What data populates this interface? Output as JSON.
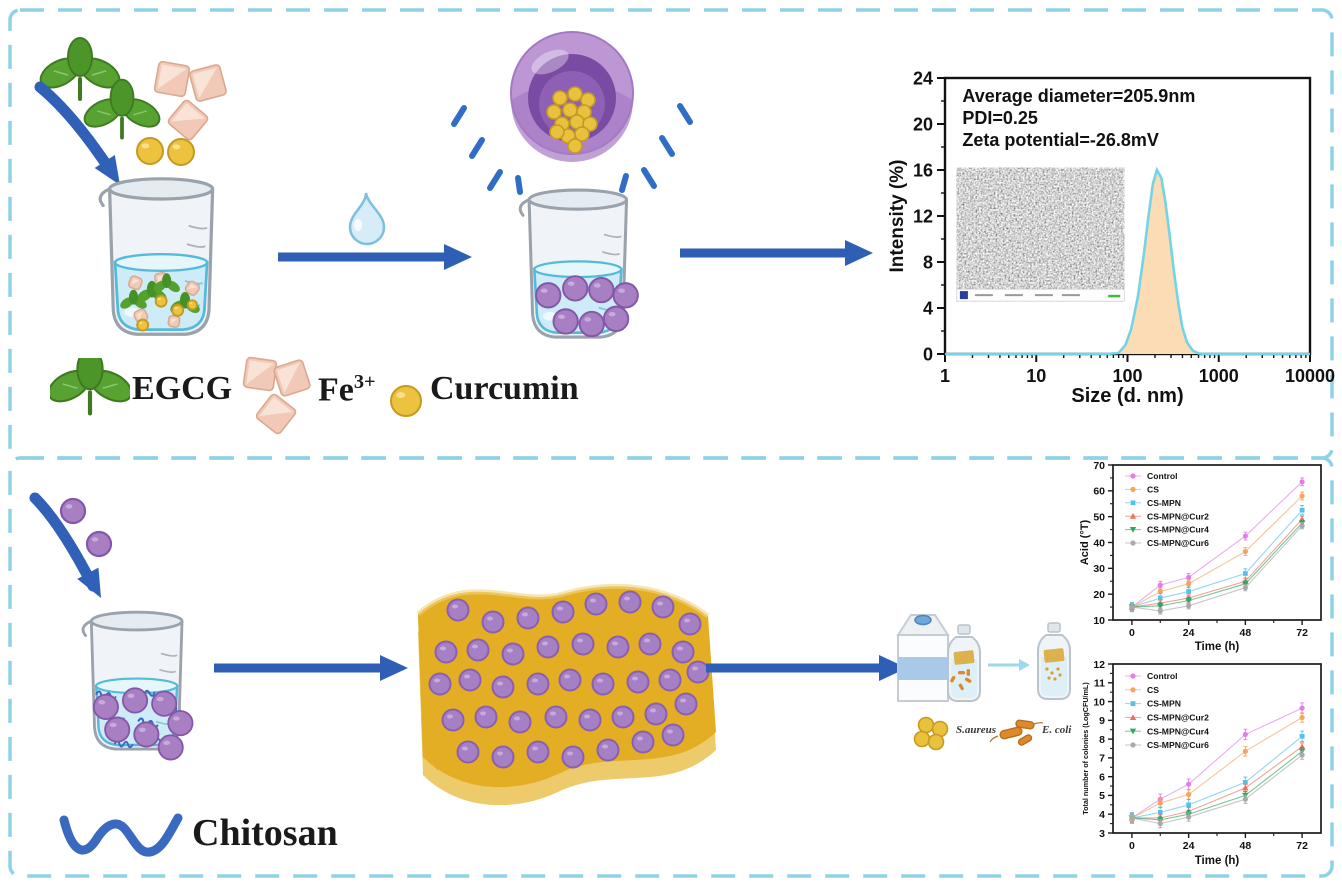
{
  "figure": {
    "top_panel": {
      "legend": {
        "egcg": "EGCG",
        "fe_base": "Fe",
        "fe_sup": "3+",
        "curcumin": "Curcumin"
      }
    },
    "bottom_panel": {
      "chitosan": "Chitosan",
      "bacteria": {
        "saureus": "S.aureus",
        "ecoli": "E. coli"
      }
    }
  },
  "accent_colors": {
    "panel_border": "#8fd2e6",
    "arrow_blue": "#2e5fb5",
    "nanoparticle_purple": "#a87fc2",
    "film_gold": "#e6b12e",
    "liquid_cyan": "#cdecf8"
  },
  "chart_data": [
    {
      "id": "dls",
      "type": "area",
      "title": "",
      "xlabel": "Size (d. nm)",
      "ylabel": "Intensity (%)",
      "x_scale": "log",
      "xlim": [
        1,
        10000
      ],
      "ylim": [
        0,
        24
      ],
      "xticks": [
        1,
        10,
        100,
        1000,
        10000
      ],
      "yticks": [
        0,
        4,
        8,
        12,
        16,
        20,
        24
      ],
      "annotations": [
        "Average diameter=205.9nm",
        "PDI=0.25",
        "Zeta potential=-26.8mV"
      ],
      "line_color": "#72d4e4",
      "fill_color": "#fbdcb4",
      "curve_x": [
        1,
        60,
        80,
        95,
        110,
        130,
        150,
        170,
        190,
        210,
        235,
        260,
        290,
        320,
        360,
        400,
        450,
        520,
        600,
        700,
        10000
      ],
      "curve_y": [
        0,
        0,
        0.1,
        0.8,
        2.2,
        5.0,
        8.5,
        12.0,
        14.8,
        16.0,
        15.3,
        13.2,
        10.3,
        7.4,
        4.4,
        2.3,
        1.0,
        0.3,
        0.05,
        0,
        0
      ]
    },
    {
      "id": "acid",
      "type": "line",
      "xlabel": "Time (h)",
      "ylabel": "Acid (°T)",
      "x": [
        0,
        12,
        24,
        48,
        72
      ],
      "xticks": [
        0,
        24,
        48,
        72
      ],
      "xminor": [
        12,
        36,
        60
      ],
      "xlim": [
        -8,
        80
      ],
      "ylim": [
        10,
        70
      ],
      "yticks": [
        10,
        20,
        30,
        40,
        50,
        60,
        70
      ],
      "legend_position": "top-left",
      "grid": false,
      "series": [
        {
          "name": "Control",
          "color": "#e27fe6",
          "marker": "circle",
          "err": 1.5,
          "values": [
            15,
            23.5,
            26.5,
            42.5,
            63.5
          ]
        },
        {
          "name": "CS",
          "color": "#f5a45c",
          "marker": "circle",
          "err": 1.5,
          "values": [
            15,
            21.0,
            24.0,
            36.5,
            58.0
          ]
        },
        {
          "name": "CS-MPN",
          "color": "#55c1e9",
          "marker": "square",
          "err": 1.8,
          "values": [
            15,
            18.5,
            21.0,
            28.0,
            52.5
          ]
        },
        {
          "name": "CS-MPN@Cur2",
          "color": "#f07060",
          "marker": "triangle-up",
          "err": 1.2,
          "values": [
            15,
            16.5,
            18.5,
            25.0,
            49.0
          ]
        },
        {
          "name": "CS-MPN@Cur4",
          "color": "#2da868",
          "marker": "triangle-down",
          "err": 1.2,
          "values": [
            15,
            15.5,
            17.5,
            24.0,
            47.5
          ]
        },
        {
          "name": "CS-MPN@Cur6",
          "color": "#a9a9a9",
          "marker": "circle",
          "err": 1.2,
          "values": [
            15,
            13.5,
            15.5,
            22.5,
            46.5
          ]
        }
      ]
    },
    {
      "id": "colonies",
      "type": "line",
      "xlabel": "Time (h)",
      "ylabel": "Total number of colonies (LogCFU/mL)",
      "x": [
        0,
        12,
        24,
        48,
        72
      ],
      "xticks": [
        0,
        24,
        48,
        72
      ],
      "xminor": [
        12,
        36,
        60
      ],
      "xlim": [
        -8,
        80
      ],
      "ylim": [
        3,
        12
      ],
      "yticks": [
        3,
        4,
        5,
        6,
        7,
        8,
        9,
        10,
        11,
        12
      ],
      "legend_position": "top-left",
      "grid": false,
      "series": [
        {
          "name": "Control",
          "color": "#e27fe6",
          "marker": "circle",
          "err": 0.28,
          "values": [
            3.8,
            4.8,
            5.6,
            8.25,
            9.65
          ]
        },
        {
          "name": "CS",
          "color": "#f5a45c",
          "marker": "circle",
          "err": 0.25,
          "values": [
            3.8,
            4.6,
            5.05,
            7.35,
            9.15
          ]
        },
        {
          "name": "CS-MPN",
          "color": "#55c1e9",
          "marker": "square",
          "err": 0.28,
          "values": [
            3.8,
            4.1,
            4.5,
            5.7,
            8.15
          ]
        },
        {
          "name": "CS-MPN@Cur2",
          "color": "#f07060",
          "marker": "triangle-up",
          "err": 0.2,
          "values": [
            3.8,
            3.8,
            4.15,
            5.4,
            7.6
          ]
        },
        {
          "name": "CS-MPN@Cur4",
          "color": "#2da868",
          "marker": "triangle-down",
          "err": 0.2,
          "values": [
            3.8,
            3.7,
            4.0,
            5.0,
            7.35
          ]
        },
        {
          "name": "CS-MPN@Cur6",
          "color": "#a9a9a9",
          "marker": "circle",
          "err": 0.22,
          "values": [
            3.8,
            3.5,
            3.85,
            4.8,
            7.15
          ]
        }
      ]
    }
  ]
}
